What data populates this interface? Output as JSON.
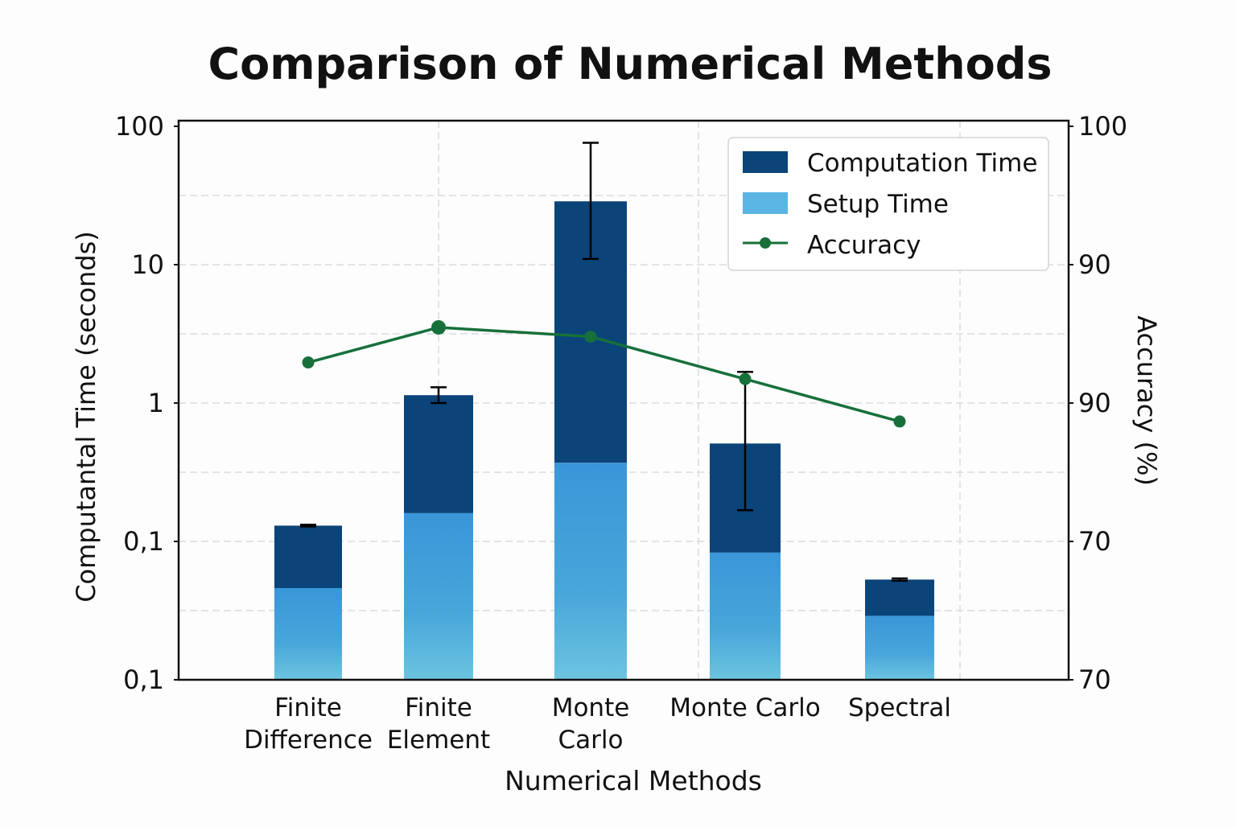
{
  "chart_data": {
    "type": "bar",
    "stacked": true,
    "title": "Comparison of Numerical Methods",
    "xlabel": "Numerical Methods",
    "ylabel": "Computantal Time (seconds)",
    "y2label": "Accuracy (%)",
    "yscale": "log",
    "ylim": [
      0.01,
      100
    ],
    "y_tick_labels": [
      "100",
      "10",
      "1",
      "0,1",
      "0,1"
    ],
    "y2lim": [
      70,
      100
    ],
    "y2_tick_labels": [
      "100",
      "90",
      "90",
      "70",
      "70"
    ],
    "grid": true,
    "legend_position": "top-right",
    "categories": [
      [
        "Finite",
        "Difference"
      ],
      [
        "Finite",
        "Element"
      ],
      [
        "Monte",
        "Carlo"
      ],
      [
        "Monte Carlo"
      ],
      [
        "Spectral"
      ]
    ],
    "series": [
      {
        "name": "Computation Time",
        "type": "bar",
        "color": "#0b4479",
        "values": [
          0.13,
          1.14,
          28.7,
          0.51,
          0.053
        ],
        "error_low": [
          0.128,
          1.0,
          11,
          0.168,
          0.052
        ],
        "error_high": [
          0.132,
          1.3,
          76,
          1.68,
          0.054
        ]
      },
      {
        "name": "Setup Time",
        "type": "bar",
        "color": "#3a96d8",
        "values": [
          0.046,
          0.16,
          0.37,
          0.083,
          0.029
        ]
      },
      {
        "name": "Accuracy",
        "type": "line",
        "axis": "right",
        "color": "#17703a",
        "values": [
          87.2,
          89.1,
          88.6,
          86.3,
          84.0
        ]
      }
    ]
  }
}
